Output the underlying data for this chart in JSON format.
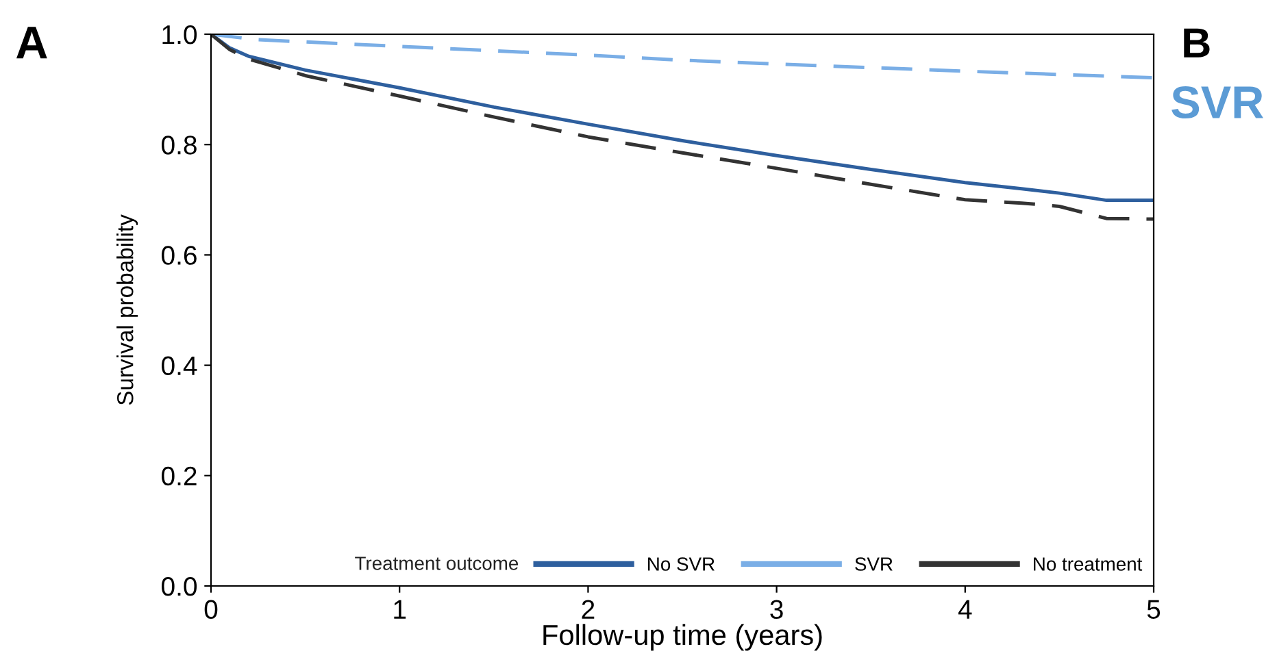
{
  "chart_data": {
    "type": "line",
    "xlabel": "Follow-up time (years)",
    "ylabel": "Survival probability",
    "legend_title": "Treatment outcome",
    "annotations": [
      "A",
      "B",
      "SVR"
    ],
    "xlim": [
      0,
      5
    ],
    "ylim": [
      0,
      1
    ],
    "xticks": [
      0,
      1,
      2,
      3,
      4,
      5
    ],
    "yticks": [
      {
        "value": 0,
        "label": "0.0"
      },
      {
        "value": 0.2,
        "label": "0.2"
      },
      {
        "value": 0.4,
        "label": "0.4"
      },
      {
        "value": 0.6,
        "label": "0.6"
      },
      {
        "value": 0.8,
        "label": "0.8"
      },
      {
        "value": 1,
        "label": "1.0"
      }
    ],
    "grid": false,
    "legend": "bottom",
    "marker": "none",
    "series": [
      {
        "name": "No SVR",
        "color": "#2e5f9e",
        "line_style": "solid",
        "x": [
          0,
          0.1,
          0.2,
          0.5,
          1,
          1.5,
          2,
          2.5,
          3,
          3.5,
          4,
          4.3,
          4.5,
          4.75,
          5
        ],
        "values": [
          1,
          0.975,
          0.96,
          0.935,
          0.903,
          0.868,
          0.837,
          0.807,
          0.78,
          0.755,
          0.731,
          0.72,
          0.712,
          0.699,
          0.699
        ]
      },
      {
        "name": "SVR",
        "color": "#7aaee6",
        "line_style": "dashed",
        "x": [
          0,
          0.25,
          1,
          2,
          2.5,
          3,
          4,
          5
        ],
        "values": [
          1,
          0.99,
          0.978,
          0.962,
          0.953,
          0.946,
          0.933,
          0.921
        ]
      },
      {
        "name": "No treatment",
        "color": "#333333",
        "line_style": "dashed",
        "x": [
          0,
          0.1,
          0.2,
          0.5,
          1,
          1.5,
          2,
          2.5,
          3,
          3.5,
          4,
          4.3,
          4.5,
          4.75,
          5
        ],
        "values": [
          1,
          0.972,
          0.955,
          0.925,
          0.888,
          0.85,
          0.814,
          0.785,
          0.757,
          0.728,
          0.7,
          0.694,
          0.688,
          0.666,
          0.665
        ]
      }
    ]
  }
}
